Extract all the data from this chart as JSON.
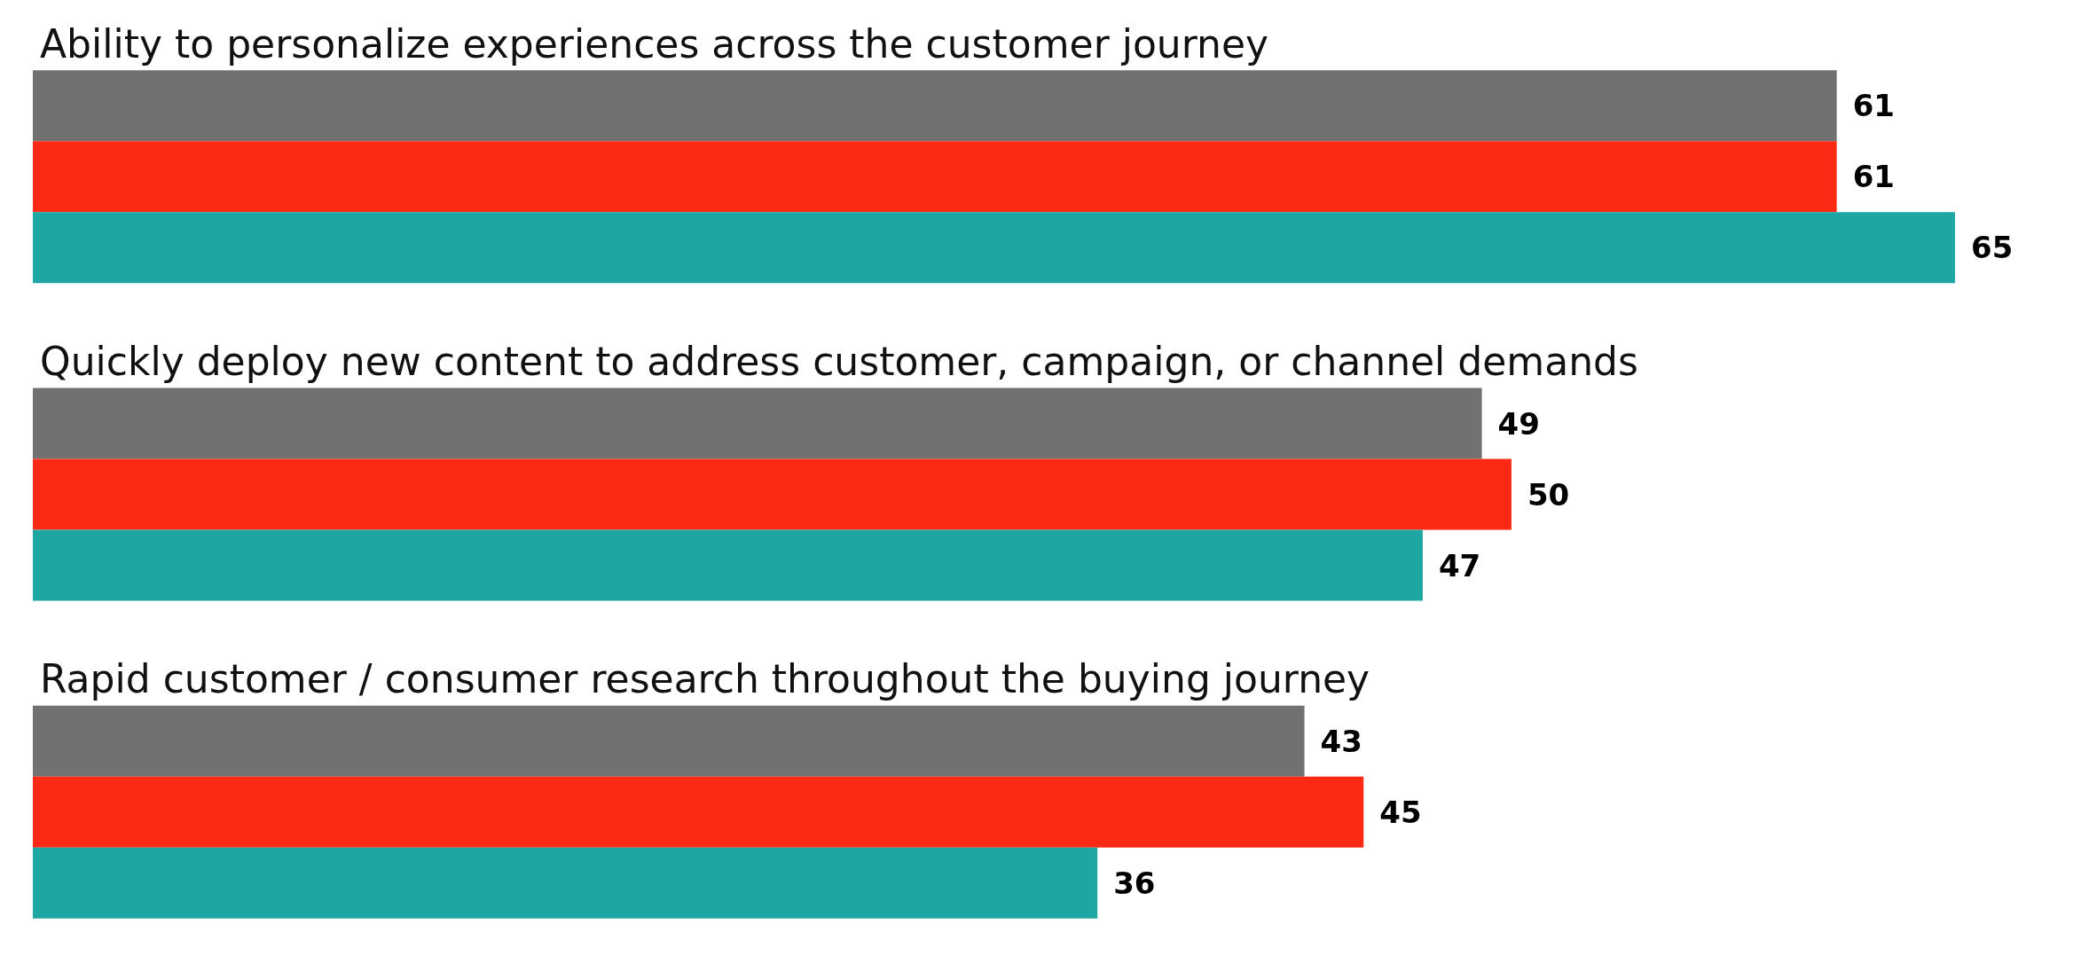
{
  "chart_data": {
    "type": "bar",
    "orientation": "horizontal",
    "categories": [
      "Ability to personalize experiences across the customer journey",
      "Quickly deploy new content to address customer, campaign, or channel demands",
      "Rapid customer / consumer research throughout the buying journey"
    ],
    "series": [
      {
        "color": "#717171",
        "values": [
          61,
          49,
          43
        ]
      },
      {
        "color": "#fc2a14",
        "values": [
          61,
          50,
          45
        ]
      },
      {
        "color": "#1ea6a4",
        "values": [
          65,
          47,
          36
        ]
      }
    ],
    "data_labels": true
  }
}
